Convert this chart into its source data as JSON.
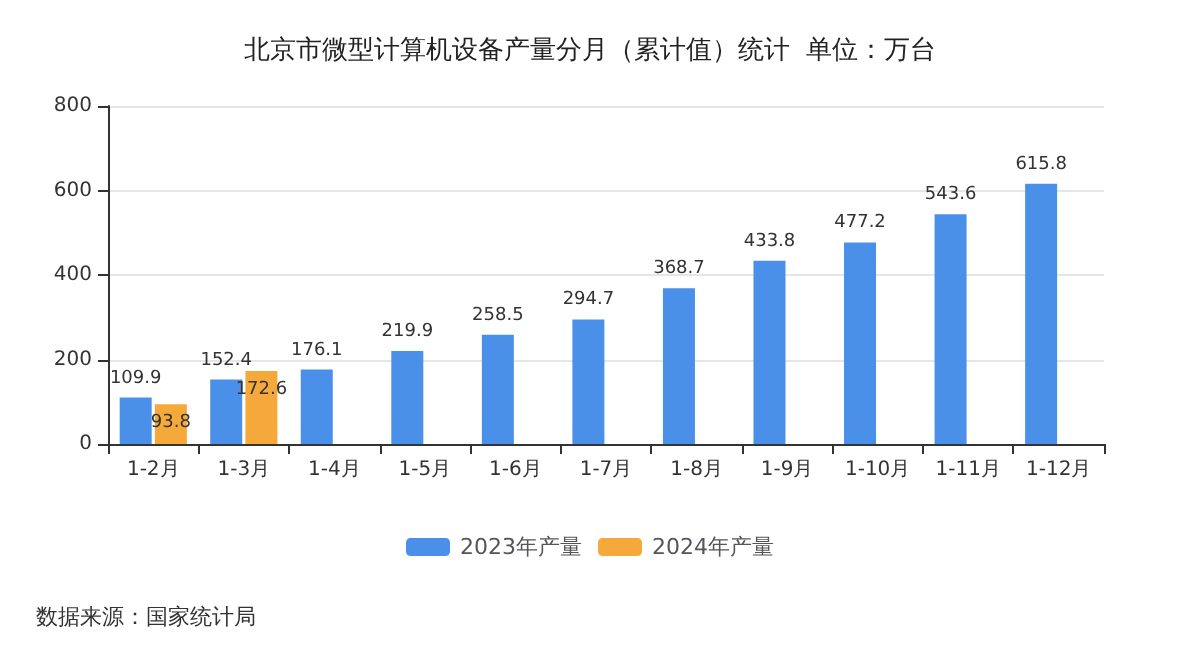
{
  "chart_data": {
    "type": "bar",
    "title": "北京市微型计算机设备产量分月（累计值）统计  单位：万台",
    "categories": [
      "1-2月",
      "1-3月",
      "1-4月",
      "1-5月",
      "1-6月",
      "1-7月",
      "1-8月",
      "1-9月",
      "1-10月",
      "1-11月",
      "1-12月"
    ],
    "series": [
      {
        "name": "2023年产量",
        "color": "#4a8fe8",
        "values": [
          109.9,
          152.4,
          176.1,
          219.9,
          258.5,
          294.7,
          368.7,
          433.8,
          477.2,
          543.6,
          615.8
        ]
      },
      {
        "name": "2024年产量",
        "color": "#f6a93b",
        "values": [
          93.8,
          172.6,
          null,
          null,
          null,
          null,
          null,
          null,
          null,
          null,
          null
        ]
      }
    ],
    "ylim": [
      0,
      800
    ],
    "yticks": [
      0,
      200,
      400,
      600,
      800
    ],
    "grid": "y",
    "legend": "bottom",
    "data_labels": true,
    "annotations": [
      "数据来源：国家统计局"
    ]
  }
}
